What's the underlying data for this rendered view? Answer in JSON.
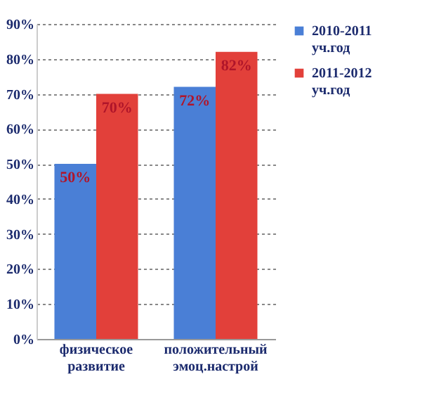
{
  "chart_data": {
    "type": "bar",
    "categories": [
      "физическое\nразвитие",
      "положительный\nэмоц.настрой"
    ],
    "series": [
      {
        "name": "2010-2011\nуч.год",
        "color": "#4a7fd6",
        "values": [
          50,
          72
        ],
        "value_labels": [
          "50%",
          "72%"
        ]
      },
      {
        "name": "2011-2012\nуч.год",
        "color": "#e2403a",
        "values": [
          70,
          82
        ],
        "value_labels": [
          "70%",
          "82%"
        ]
      }
    ],
    "ylim": [
      0,
      90
    ],
    "yticks": [
      {
        "value": 0,
        "label": "0%"
      },
      {
        "value": 10,
        "label": "10%"
      },
      {
        "value": 20,
        "label": "20%"
      },
      {
        "value": 30,
        "label": "30%"
      },
      {
        "value": 40,
        "label": "40%"
      },
      {
        "value": 50,
        "label": "50%"
      },
      {
        "value": 60,
        "label": "60%"
      },
      {
        "value": 70,
        "label": "70%"
      },
      {
        "value": 80,
        "label": "80%"
      },
      {
        "value": 90,
        "label": "90%"
      }
    ],
    "grid": "y",
    "legend": "right"
  }
}
